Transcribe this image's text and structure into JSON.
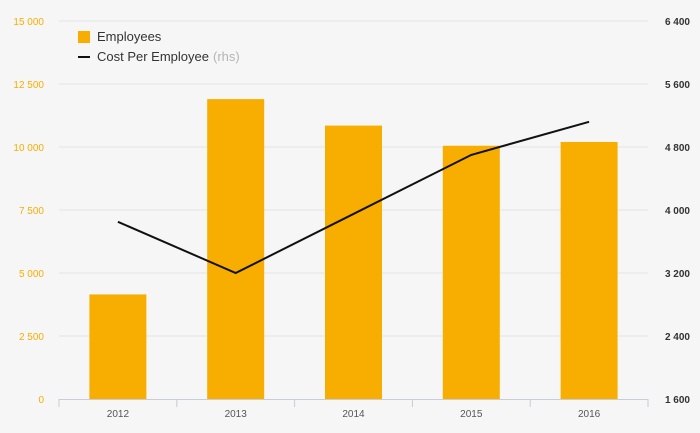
{
  "chart_data": {
    "type": "bar",
    "categories": [
      "2012",
      "2013",
      "2014",
      "2015",
      "2016"
    ],
    "series": [
      {
        "name": "Employees",
        "type": "bar",
        "axis": "left",
        "color": "#f8ae00",
        "values": [
          4150,
          11900,
          10850,
          10050,
          10200
        ]
      },
      {
        "name": "Cost Per Employee",
        "axis_note": "(rhs)",
        "type": "line",
        "axis": "right",
        "color": "#111111",
        "values": [
          3850,
          3200,
          3950,
          4700,
          5120
        ]
      }
    ],
    "y_left": {
      "ylim": [
        0,
        15000
      ],
      "ticks": [
        0,
        2500,
        5000,
        7500,
        10000,
        12500,
        15000
      ],
      "tick_labels": [
        "0",
        "2 500",
        "5 000",
        "7 500",
        "10 000",
        "12 500",
        "15 000"
      ],
      "color": "#f8ae00"
    },
    "y_right": {
      "ylim": [
        1600,
        6400
      ],
      "ticks": [
        1600,
        2400,
        3200,
        4000,
        4800,
        5600,
        6400
      ],
      "tick_labels": [
        "1 600",
        "2 400",
        "3 200",
        "4 000",
        "4 800",
        "5 600",
        "6 400"
      ],
      "color": "#333333"
    },
    "title": "",
    "xlabel": "",
    "ylabel": "",
    "grid": true,
    "legend_position": "top-left"
  }
}
